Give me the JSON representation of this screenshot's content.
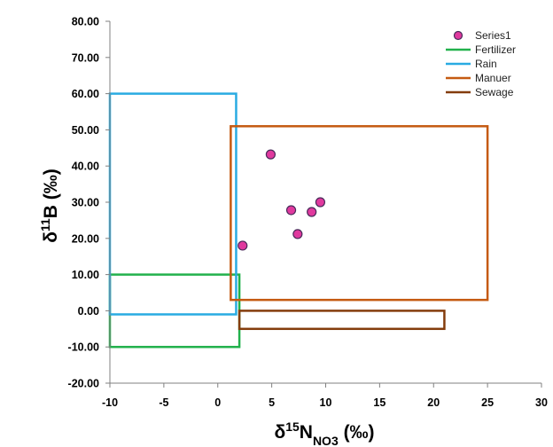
{
  "chart_data": {
    "type": "scatter",
    "xlabel": {
      "main": "δ",
      "sup": "15",
      "sym": "N",
      "sub": "NO3",
      "unit": " (‰)"
    },
    "ylabel": {
      "main": "δ",
      "sup": "11",
      "sym": "B",
      "unit": " (‰)"
    },
    "xlim": [
      -10,
      30
    ],
    "ylim": [
      -20,
      80
    ],
    "xticks": [
      "-10",
      "-5",
      "0",
      "5",
      "10",
      "15",
      "20",
      "25",
      "30"
    ],
    "yticks": [
      "-20.00",
      "-10.00",
      "0.00",
      "10.00",
      "20.00",
      "30.00",
      "40.00",
      "50.00",
      "60.00",
      "70.00",
      "80.00"
    ],
    "grid": false,
    "legend_position": "top-right",
    "series": [
      {
        "name": "Series1",
        "kind": "points",
        "color": "#e0399e",
        "points": [
          {
            "x": 2.3,
            "y": 18.0
          },
          {
            "x": 4.9,
            "y": 43.2
          },
          {
            "x": 6.8,
            "y": 27.8
          },
          {
            "x": 7.4,
            "y": 21.2
          },
          {
            "x": 8.7,
            "y": 27.3
          },
          {
            "x": 9.5,
            "y": 30.0
          }
        ]
      },
      {
        "name": "Fertilizer",
        "kind": "box",
        "color": "#22b14c",
        "x0": -10,
        "x1": 2,
        "y0": -10,
        "y1": 10
      },
      {
        "name": "Rain",
        "kind": "box",
        "color": "#29abe2",
        "x0": -10,
        "x1": 1.7,
        "y0": -1,
        "y1": 60
      },
      {
        "name": "Manuer",
        "kind": "box",
        "color": "#c55a11",
        "x0": 1.2,
        "x1": 25,
        "y0": 3,
        "y1": 51
      },
      {
        "name": "Sewage",
        "kind": "box",
        "color": "#843c0c",
        "x0": 2,
        "x1": 21,
        "y0": -5,
        "y1": 0
      }
    ]
  }
}
